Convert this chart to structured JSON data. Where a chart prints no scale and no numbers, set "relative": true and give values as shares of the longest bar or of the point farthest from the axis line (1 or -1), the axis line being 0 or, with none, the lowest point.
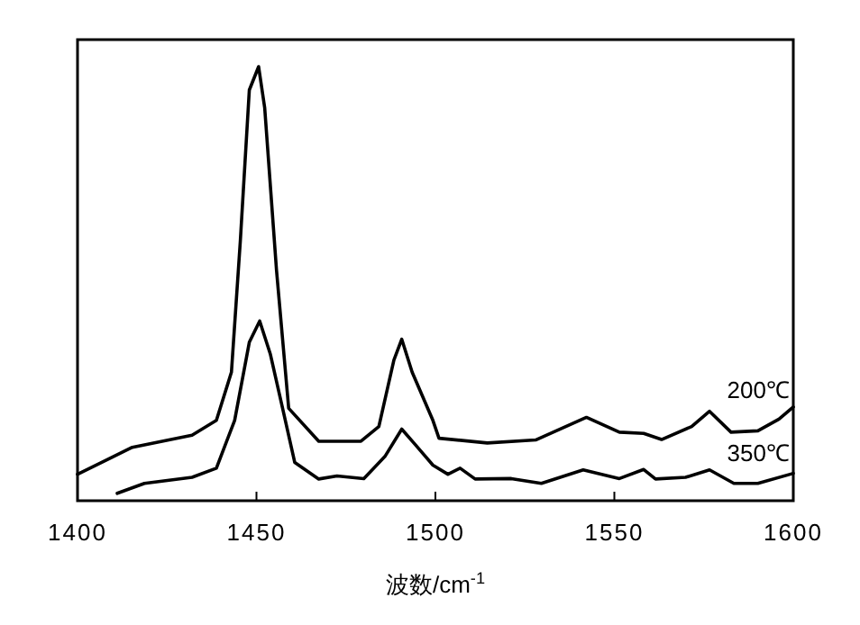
{
  "chart_data": {
    "type": "line",
    "relative": true,
    "xlabel": "波数/cm$^{-1}$",
    "xlim": [
      1400,
      1600
    ],
    "xticks": [
      1400,
      1450,
      1500,
      1550,
      1600
    ],
    "series": [
      {
        "name": "200℃",
        "color": "#000000",
        "x": [
          1400,
          1415.3,
          1432,
          1438.8,
          1443,
          1445.5,
          1448,
          1450.6,
          1452.3,
          1455.6,
          1459,
          1467.4,
          1479.2,
          1484.2,
          1488.4,
          1490.6,
          1493.5,
          1499.3,
          1501,
          1514.5,
          1528,
          1542.2,
          1551.4,
          1558.2,
          1563.2,
          1571.6,
          1576.6,
          1582.6,
          1590.1,
          1596,
          1600
        ],
        "values": [
          0.061,
          0.123,
          0.151,
          0.185,
          0.296,
          0.6,
          0.946,
          1.0,
          0.905,
          0.531,
          0.213,
          0.137,
          0.137,
          0.171,
          0.324,
          0.372,
          0.296,
          0.185,
          0.144,
          0.133,
          0.14,
          0.192,
          0.158,
          0.155,
          0.141,
          0.171,
          0.206,
          0.158,
          0.161,
          0.188,
          0.216
        ]
      },
      {
        "name": "350℃",
        "color": "#000000",
        "x": [
          1411.1,
          1418.7,
          1432,
          1438.8,
          1443.9,
          1448,
          1450.9,
          1453.9,
          1457.3,
          1460.7,
          1467.4,
          1472.5,
          1480,
          1485.9,
          1490.6,
          1494.3,
          1499.3,
          1503.5,
          1506.9,
          1511.1,
          1521.2,
          1529.6,
          1541.3,
          1551.4,
          1558.2,
          1561.5,
          1569.9,
          1576.6,
          1583.4,
          1590.1,
          1600
        ],
        "values": [
          0.017,
          0.04,
          0.054,
          0.075,
          0.185,
          0.365,
          0.414,
          0.337,
          0.213,
          0.088,
          0.05,
          0.057,
          0.051,
          0.102,
          0.165,
          0.13,
          0.082,
          0.061,
          0.075,
          0.05,
          0.051,
          0.04,
          0.071,
          0.051,
          0.072,
          0.05,
          0.054,
          0.071,
          0.04,
          0.04,
          0.063
        ]
      }
    ]
  }
}
